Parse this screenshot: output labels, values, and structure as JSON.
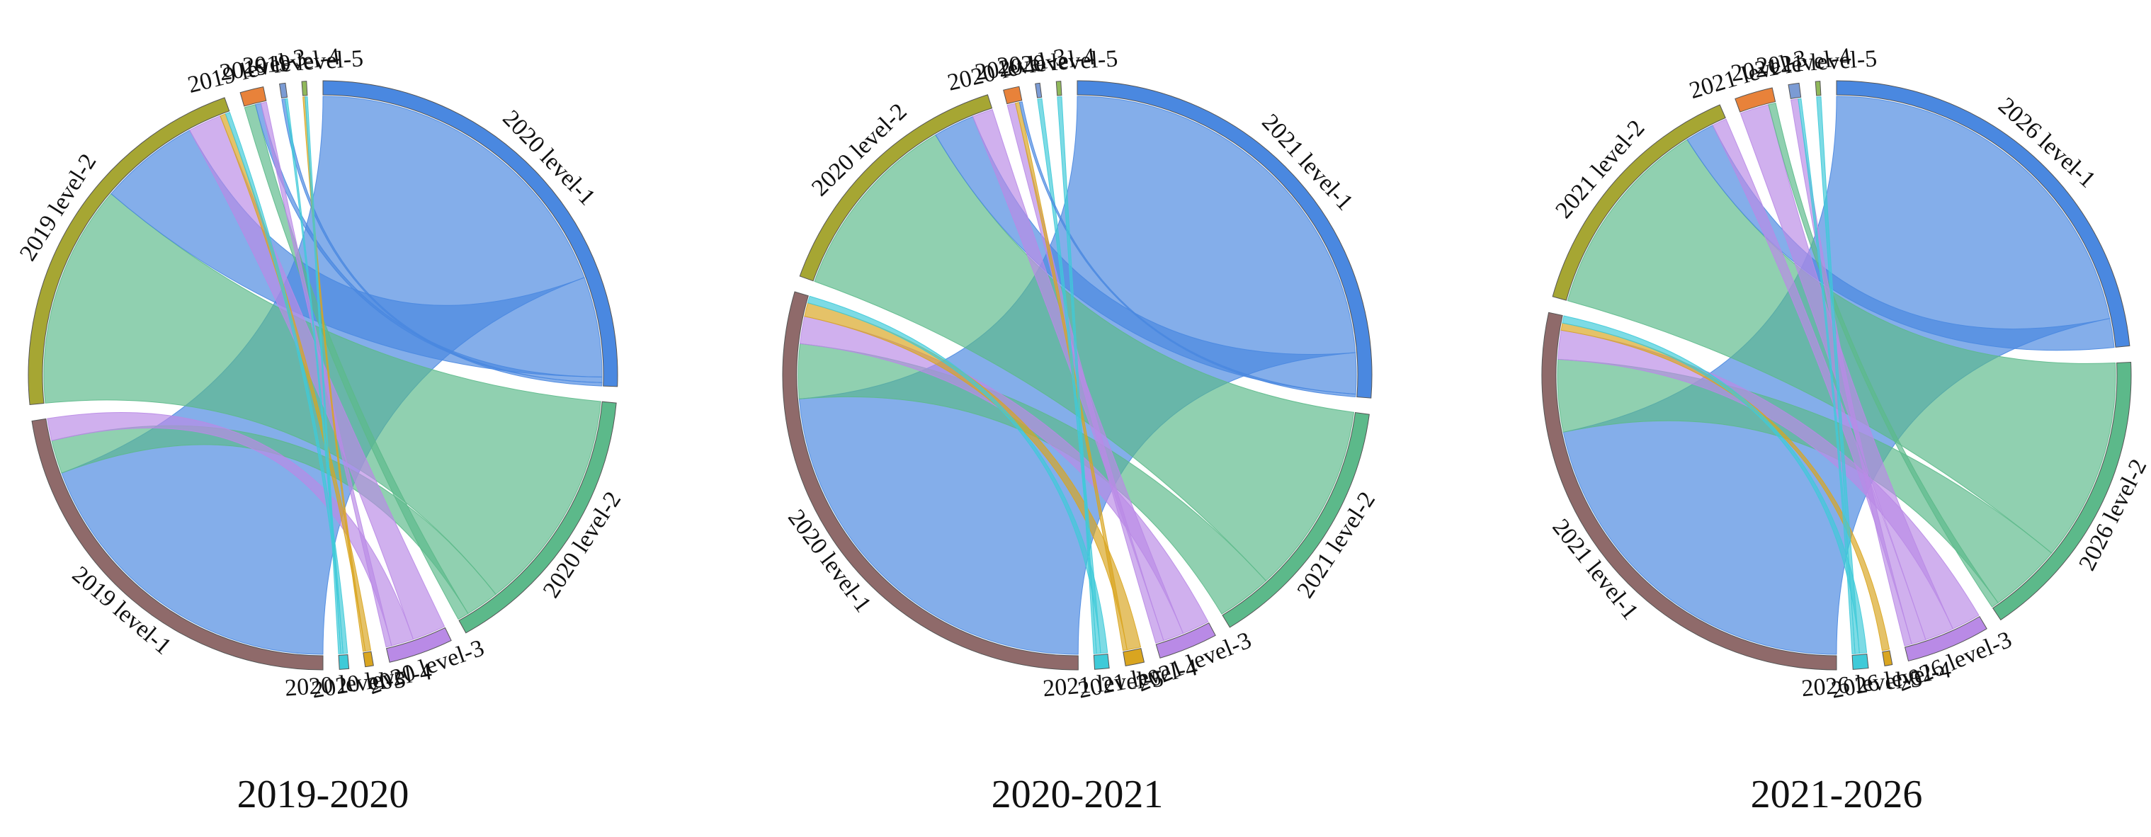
{
  "chart_data": [
    {
      "type": "chord",
      "title": "2019-2020",
      "groups": [
        {
          "label": "2020 level-1",
          "color": "#4a88e0"
        },
        {
          "label": "2020 level-2",
          "color": "#5cb98a"
        },
        {
          "label": "2020 level-3",
          "color": "#b98ae6"
        },
        {
          "label": "2020 level-4",
          "color": "#d9a520"
        },
        {
          "label": "2020 level-5",
          "color": "#3fcad8"
        },
        {
          "label": "2019 level-1",
          "color": "#8f6a6a"
        },
        {
          "label": "2019 level-2",
          "color": "#a6a633"
        },
        {
          "label": "2019 level-3",
          "color": "#e8823a"
        },
        {
          "label": "2019 level-4",
          "color": "#7b9bd4"
        },
        {
          "label": "2019 level-5",
          "color": "#90b85a"
        }
      ],
      "flows": [
        {
          "from": "2019 level-1",
          "to": "2020 level-1",
          "value": 30
        },
        {
          "from": "2019 level-1",
          "to": "2020 level-2",
          "value": 3
        },
        {
          "from": "2019 level-1",
          "to": "2020 level-3",
          "value": 2
        },
        {
          "from": "2019 level-2",
          "to": "2020 level-1",
          "value": 9
        },
        {
          "from": "2019 level-2",
          "to": "2020 level-2",
          "value": 20
        },
        {
          "from": "2019 level-2",
          "to": "2020 level-3",
          "value": 3
        },
        {
          "from": "2019 level-2",
          "to": "2020 level-4",
          "value": 0.5
        },
        {
          "from": "2019 level-2",
          "to": "2020 level-5",
          "value": 0.4
        },
        {
          "from": "2019 level-3",
          "to": "2020 level-1",
          "value": 0.5
        },
        {
          "from": "2019 level-3",
          "to": "2020 level-2",
          "value": 1
        },
        {
          "from": "2019 level-3",
          "to": "2020 level-3",
          "value": 0.5
        },
        {
          "from": "2019 level-4",
          "to": "2020 level-1",
          "value": 0.3
        },
        {
          "from": "2019 level-4",
          "to": "2020 level-5",
          "value": 0.2
        },
        {
          "from": "2019 level-5",
          "to": "2020 level-4",
          "value": 0.2
        },
        {
          "from": "2019 level-5",
          "to": "2020 level-5",
          "value": 0.2
        }
      ]
    },
    {
      "type": "chord",
      "title": "2020-2021",
      "groups": [
        {
          "label": "2021 level-1",
          "color": "#4a88e0"
        },
        {
          "label": "2021 level-2",
          "color": "#5cb98a"
        },
        {
          "label": "2021 level-3",
          "color": "#b98ae6"
        },
        {
          "label": "2021 level-4",
          "color": "#d9a520"
        },
        {
          "label": "2021 level-5",
          "color": "#3fcad8"
        },
        {
          "label": "2020 level-1",
          "color": "#8f6a6a"
        },
        {
          "label": "2020 level-2",
          "color": "#a6a633"
        },
        {
          "label": "2020 level-3",
          "color": "#e8823a"
        },
        {
          "label": "2020 level-4",
          "color": "#7b9bd4"
        },
        {
          "label": "2020 level-5",
          "color": "#90b85a"
        }
      ],
      "flows": [
        {
          "from": "2020 level-1",
          "to": "2021 level-1",
          "value": 30
        },
        {
          "from": "2020 level-1",
          "to": "2021 level-2",
          "value": 4
        },
        {
          "from": "2020 level-1",
          "to": "2021 level-3",
          "value": 2
        },
        {
          "from": "2020 level-1",
          "to": "2021 level-4",
          "value": 1
        },
        {
          "from": "2020 level-1",
          "to": "2021 level-5",
          "value": 0.5
        },
        {
          "from": "2020 level-2",
          "to": "2021 level-1",
          "value": 3
        },
        {
          "from": "2020 level-2",
          "to": "2021 level-2",
          "value": 14
        },
        {
          "from": "2020 level-2",
          "to": "2021 level-3",
          "value": 1.5
        },
        {
          "from": "2020 level-3",
          "to": "2021 level-1",
          "value": 0.2
        },
        {
          "from": "2020 level-3",
          "to": "2021 level-3",
          "value": 0.6
        },
        {
          "from": "2020 level-3",
          "to": "2021 level-4",
          "value": 0.3
        },
        {
          "from": "2020 level-4",
          "to": "2021 level-5",
          "value": 0.3
        },
        {
          "from": "2020 level-5",
          "to": "2021 level-5",
          "value": 0.2
        }
      ]
    },
    {
      "type": "chord",
      "title": "2021-2026",
      "groups": [
        {
          "label": "2026 level-1",
          "color": "#4a88e0"
        },
        {
          "label": "2026 level-2",
          "color": "#5cb98a"
        },
        {
          "label": "2026 level-3",
          "color": "#b98ae6"
        },
        {
          "label": "2026 level-4",
          "color": "#d9a520"
        },
        {
          "label": "2026 level-5",
          "color": "#3fcad8"
        },
        {
          "label": "2021 level-1",
          "color": "#8f6a6a"
        },
        {
          "label": "2021 level-2",
          "color": "#a6a633"
        },
        {
          "label": "2021 level-3",
          "color": "#e8823a"
        },
        {
          "label": "2021 level-4",
          "color": "#7b9bd4"
        },
        {
          "label": "2021 level-5",
          "color": "#90b85a"
        }
      ],
      "flows": [
        {
          "from": "2021 level-1",
          "to": "2026 level-1",
          "value": 26
        },
        {
          "from": "2021 level-1",
          "to": "2026 level-2",
          "value": 5
        },
        {
          "from": "2021 level-1",
          "to": "2026 level-3",
          "value": 2
        },
        {
          "from": "2021 level-1",
          "to": "2026 level-4",
          "value": 0.5
        },
        {
          "from": "2021 level-1",
          "to": "2026 level-5",
          "value": 0.5
        },
        {
          "from": "2021 level-2",
          "to": "2026 level-1",
          "value": 2
        },
        {
          "from": "2021 level-2",
          "to": "2026 level-2",
          "value": 14
        },
        {
          "from": "2021 level-2",
          "to": "2026 level-3",
          "value": 1
        },
        {
          "from": "2021 level-3",
          "to": "2026 level-3",
          "value": 2
        },
        {
          "from": "2021 level-3",
          "to": "2026 level-2",
          "value": 0.5
        },
        {
          "from": "2021 level-4",
          "to": "2026 level-3",
          "value": 0.5
        },
        {
          "from": "2021 level-4",
          "to": "2026 level-5",
          "value": 0.2
        },
        {
          "from": "2021 level-5",
          "to": "2026 level-5",
          "value": 0.3
        }
      ]
    }
  ]
}
